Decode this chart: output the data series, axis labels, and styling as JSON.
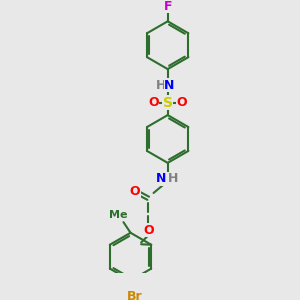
{
  "background_color": "#e8e8e8",
  "bond_color": "#2d6e2d",
  "colors": {
    "N": "#0000ff",
    "O": "#ff0000",
    "S": "#cccc00",
    "F": "#cc00cc",
    "Br": "#cc8800",
    "H": "#808080",
    "Me": "#2d6e2d"
  },
  "figsize": [
    3.0,
    3.0
  ],
  "dpi": 100
}
